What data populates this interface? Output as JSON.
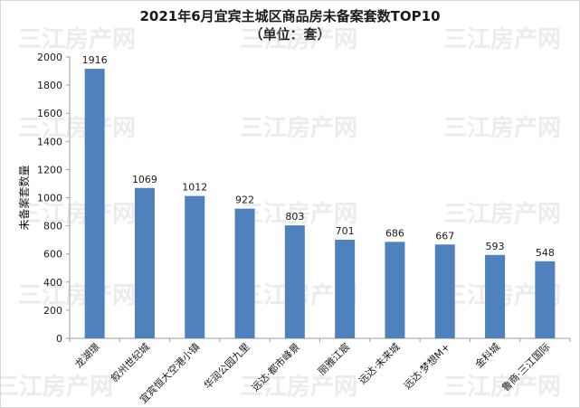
{
  "chart_data": {
    "type": "bar",
    "title": "2021年6月宜宾主城区商品房未备案套数TOP10",
    "subtitle": "（单位：套）",
    "xlabel": "",
    "ylabel": "未备案套数量",
    "ylim": [
      0,
      2000
    ],
    "ytick_step": 200,
    "yticks": [
      "0",
      "200",
      "400",
      "600",
      "800",
      "1000",
      "1200",
      "1400",
      "1600",
      "1800",
      "2000"
    ],
    "categories": [
      "龙湖璟",
      "叙州世纪城",
      "宜宾恒大空港小镇",
      "华润公园九里",
      "远达·都市峰景",
      "丽雅江宸",
      "远达·未来城",
      "远达·梦想M+",
      "金科城",
      "鲁商·三江国际"
    ],
    "values": [
      1916,
      1069,
      1012,
      922,
      803,
      701,
      686,
      667,
      593,
      548
    ],
    "data_labels": [
      "1916",
      "1069",
      "1012",
      "922",
      "803",
      "701",
      "686",
      "667",
      "593",
      "548"
    ],
    "bar_color": "#4f81bd",
    "grid": false,
    "legend": "none"
  },
  "watermark": {
    "text": "三江房产网"
  }
}
